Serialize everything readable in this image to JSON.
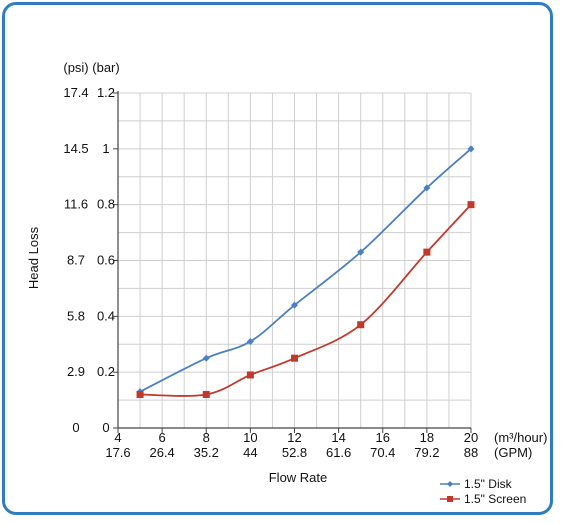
{
  "chart_data": {
    "type": "line",
    "title": "",
    "ylabel": "Head Loss",
    "xlabel": "Flow Rate",
    "y_unit_psi": "(psi)",
    "y_unit_bar": "(bar)",
    "x_unit_m3": "(m³/hour)",
    "x_unit_gpm": "(GPM)",
    "xlim": [
      4,
      20
    ],
    "ylim": [
      0,
      1.2
    ],
    "x_ticks_m3": [
      "4",
      "6",
      "8",
      "10",
      "12",
      "14",
      "16",
      "18",
      "20"
    ],
    "x_ticks_gpm": [
      "17.6",
      "26.4",
      "35.2",
      "44",
      "52.8",
      "61.6",
      "70.4",
      "79.2",
      "88"
    ],
    "y_ticks_bar": [
      "0",
      "0.2",
      "0.4",
      "0.6",
      "0.8",
      "1",
      "1.2"
    ],
    "y_ticks_psi": [
      "0",
      "2.9",
      "5.8",
      "8.7",
      "11.6",
      "14.5",
      "17.4"
    ],
    "grid": true,
    "legend_position": "bottom-right",
    "series": [
      {
        "name": "1.5\" Disk",
        "color": "#4a7fc1",
        "marker": "diamond",
        "x": [
          5,
          8,
          10,
          12,
          15,
          18,
          20
        ],
        "y": [
          0.13,
          0.25,
          0.31,
          0.44,
          0.63,
          0.86,
          1.0
        ]
      },
      {
        "name": "1.5\" Screen",
        "color": "#c0392b",
        "marker": "square",
        "x": [
          5,
          8,
          10,
          12,
          15,
          18,
          20
        ],
        "y": [
          0.12,
          0.12,
          0.19,
          0.25,
          0.37,
          0.63,
          0.8
        ]
      }
    ]
  }
}
